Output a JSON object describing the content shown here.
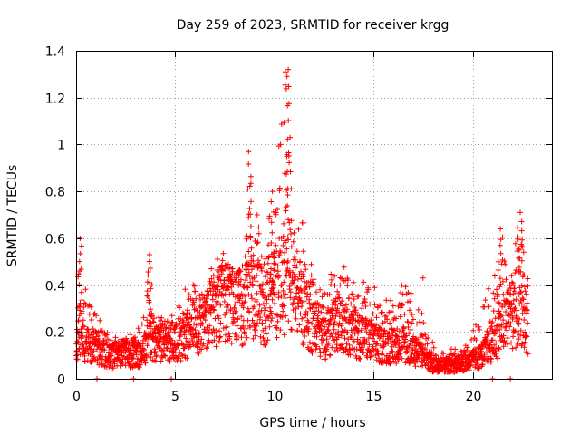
{
  "chart_data": {
    "type": "scatter",
    "title": "Day 259 of 2023, SRMTID for receiver krgg",
    "xlabel": "GPS time / hours",
    "ylabel": "SRMTID / TECUs",
    "xlim": [
      0,
      24
    ],
    "ylim": [
      0,
      1.4
    ],
    "xticks": [
      0,
      5,
      10,
      15,
      20
    ],
    "yticks": [
      0,
      0.2,
      0.4,
      0.6,
      0.8,
      1.0,
      1.2,
      1.4
    ],
    "xtick_labels": [
      "0",
      "5",
      "10",
      "15",
      "20"
    ],
    "ytick_labels": [
      "0",
      "0.2",
      "0.4",
      "0.6",
      "0.8",
      "1",
      "1.2",
      "1.4"
    ],
    "grid": true,
    "marker": "+",
    "color": "#ff0000",
    "series": [
      {
        "name": "SRMTID",
        "envelope": {
          "x_hours": [
            0.0,
            0.2,
            0.5,
            1.0,
            1.5,
            2.0,
            2.5,
            3.0,
            3.5,
            3.7,
            4.0,
            4.5,
            5.0,
            5.5,
            6.0,
            6.5,
            7.0,
            7.5,
            8.0,
            8.5,
            8.8,
            9.0,
            9.5,
            10.0,
            10.5,
            10.7,
            11.0,
            11.5,
            12.0,
            12.5,
            13.0,
            13.5,
            14.0,
            14.5,
            15.0,
            15.5,
            16.0,
            16.5,
            17.0,
            17.5,
            18.0,
            18.5,
            19.0,
            19.5,
            20.0,
            20.5,
            21.0,
            21.5,
            22.0,
            22.5,
            22.8
          ],
          "median": [
            0.1,
            0.22,
            0.14,
            0.14,
            0.1,
            0.1,
            0.11,
            0.1,
            0.12,
            0.2,
            0.15,
            0.15,
            0.16,
            0.18,
            0.22,
            0.24,
            0.3,
            0.32,
            0.3,
            0.3,
            0.4,
            0.36,
            0.3,
            0.38,
            0.4,
            0.45,
            0.38,
            0.3,
            0.22,
            0.18,
            0.22,
            0.25,
            0.2,
            0.18,
            0.15,
            0.14,
            0.14,
            0.15,
            0.12,
            0.1,
            0.06,
            0.06,
            0.06,
            0.07,
            0.08,
            0.1,
            0.16,
            0.22,
            0.28,
            0.3,
            0.22
          ],
          "max": [
            0.2,
            0.6,
            0.4,
            0.38,
            0.22,
            0.18,
            0.2,
            0.22,
            0.32,
            0.53,
            0.28,
            0.3,
            0.26,
            0.43,
            0.4,
            0.45,
            0.5,
            0.58,
            0.52,
            0.6,
            0.97,
            0.75,
            0.6,
            0.8,
            1.31,
            1.32,
            0.7,
            0.68,
            0.5,
            0.45,
            0.48,
            0.48,
            0.45,
            0.42,
            0.4,
            0.38,
            0.36,
            0.43,
            0.35,
            0.28,
            0.15,
            0.14,
            0.13,
            0.15,
            0.2,
            0.3,
            0.45,
            0.64,
            0.6,
            0.71,
            0.55
          ]
        },
        "outliers": [
          [
            1.05,
            0.0
          ],
          [
            2.9,
            0.0
          ],
          [
            4.8,
            0.0
          ],
          [
            21.0,
            0.0
          ],
          [
            21.9,
            0.0
          ],
          [
            17.5,
            0.43
          ]
        ]
      }
    ]
  }
}
